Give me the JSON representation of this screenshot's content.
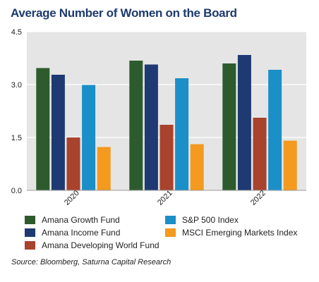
{
  "title": "Average Number of Women on the Board",
  "source": "Source: Bloomberg, Saturna Capital Research",
  "chart_data": {
    "type": "bar",
    "title": "Average Number of Women on the Board",
    "xlabel": "",
    "ylabel": "",
    "categories": [
      "2020",
      "2021",
      "2022"
    ],
    "ylim": [
      0,
      4.5
    ],
    "yticks": [
      "0.0",
      "1.5",
      "3.0",
      "4.5"
    ],
    "grid": true,
    "legend_position": "bottom",
    "series": [
      {
        "name": "Amana Growth Fund",
        "color": "#2d5b2d",
        "values": [
          3.47,
          3.68,
          3.6
        ]
      },
      {
        "name": "Amana Income Fund",
        "color": "#1f3a73",
        "values": [
          3.28,
          3.57,
          3.84
        ]
      },
      {
        "name": "Amana Developing World Fund",
        "color": "#a8432e",
        "values": [
          1.5,
          1.86,
          2.06
        ]
      },
      {
        "name": "S&P 500 Index",
        "color": "#1b8fc7",
        "values": [
          2.99,
          3.18,
          3.42
        ]
      },
      {
        "name": "MSCI Emerging Markets Index",
        "color": "#f39a1f",
        "values": [
          1.23,
          1.31,
          1.41
        ]
      }
    ]
  }
}
